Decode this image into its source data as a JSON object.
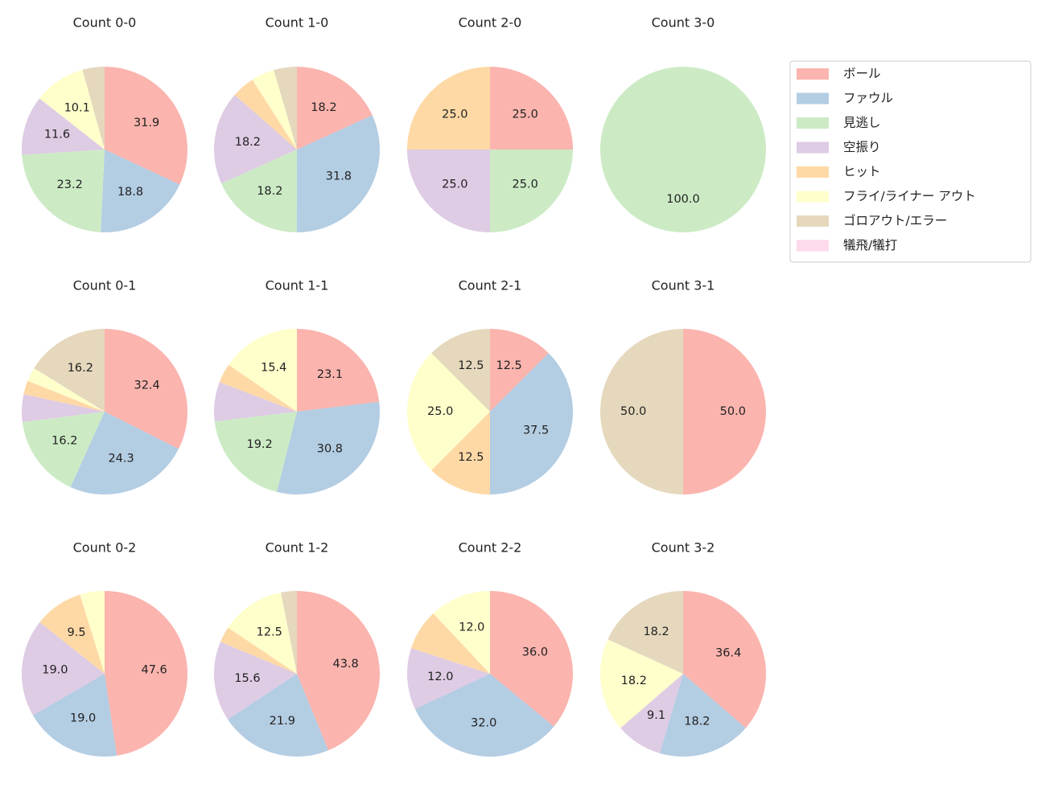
{
  "legend": {
    "categories": [
      "ボール",
      "ファウル",
      "見逃し",
      "空振り",
      "ヒット",
      "フライ/ライナー アウト",
      "ゴロアウト/エラー",
      "犠飛/犠打"
    ],
    "colors": [
      "#fbb4ae",
      "#b3cde3",
      "#ccebc5",
      "#decbe4",
      "#fed9a6",
      "#ffffcc",
      "#e5d8bd",
      "#fddaec"
    ]
  },
  "chart_data": [
    {
      "type": "pie",
      "title": "Count 0-0",
      "values": [
        31.9,
        18.8,
        23.2,
        11.6,
        0,
        10.1,
        4.3,
        0
      ],
      "value_labels": [
        "31.9",
        "18.8",
        "23.2",
        "11.6",
        null,
        "10.1",
        null,
        null
      ]
    },
    {
      "type": "pie",
      "title": "Count 1-0",
      "values": [
        18.2,
        31.8,
        18.2,
        18.2,
        4.5,
        4.5,
        4.5,
        0
      ],
      "value_labels": [
        "18.2",
        "31.8",
        "18.2",
        "18.2",
        null,
        null,
        null,
        null
      ]
    },
    {
      "type": "pie",
      "title": "Count 2-0",
      "values": [
        25,
        0,
        25,
        25,
        25,
        0,
        0,
        0
      ],
      "value_labels": [
        "25.0",
        null,
        "25.0",
        "25.0",
        "25.0",
        null,
        null,
        null
      ]
    },
    {
      "type": "pie",
      "title": "Count 3-0",
      "values": [
        0,
        0,
        100,
        0,
        0,
        0,
        0,
        0
      ],
      "value_labels": [
        null,
        null,
        "100.0",
        null,
        null,
        null,
        null,
        null
      ]
    },
    {
      "type": "pie",
      "title": "Count 0-1",
      "values": [
        32.4,
        24.3,
        16.2,
        5.4,
        2.7,
        2.7,
        16.2,
        0
      ],
      "value_labels": [
        "32.4",
        "24.3",
        "16.2",
        null,
        null,
        null,
        "16.2",
        null
      ]
    },
    {
      "type": "pie",
      "title": "Count 1-1",
      "values": [
        23.1,
        30.8,
        19.2,
        7.7,
        3.8,
        15.4,
        0,
        0
      ],
      "value_labels": [
        "23.1",
        "30.8",
        "19.2",
        null,
        null,
        "15.4",
        null,
        null
      ]
    },
    {
      "type": "pie",
      "title": "Count 2-1",
      "values": [
        12.5,
        37.5,
        0,
        0,
        12.5,
        25,
        12.5,
        0
      ],
      "value_labels": [
        "12.5",
        "37.5",
        null,
        null,
        "12.5",
        "25.0",
        "12.5",
        null
      ]
    },
    {
      "type": "pie",
      "title": "Count 3-1",
      "values": [
        50,
        0,
        0,
        0,
        0,
        0,
        50,
        0
      ],
      "value_labels": [
        "50.0",
        null,
        null,
        null,
        null,
        null,
        "50.0",
        null
      ]
    },
    {
      "type": "pie",
      "title": "Count 0-2",
      "values": [
        47.6,
        19.0,
        0,
        19.0,
        9.5,
        4.8,
        0,
        0
      ],
      "value_labels": [
        "47.6",
        "19.0",
        null,
        "19.0",
        "9.5",
        null,
        null,
        null
      ]
    },
    {
      "type": "pie",
      "title": "Count 1-2",
      "values": [
        43.8,
        21.9,
        0,
        15.6,
        3.1,
        12.5,
        3.1,
        0
      ],
      "value_labels": [
        "43.8",
        "21.9",
        null,
        "15.6",
        null,
        "12.5",
        null,
        null
      ]
    },
    {
      "type": "pie",
      "title": "Count 2-2",
      "values": [
        36.0,
        32.0,
        0,
        12.0,
        8.0,
        12.0,
        0,
        0
      ],
      "value_labels": [
        "36.0",
        "32.0",
        null,
        "12.0",
        null,
        "12.0",
        null,
        null
      ]
    },
    {
      "type": "pie",
      "title": "Count 3-2",
      "values": [
        36.4,
        18.2,
        0,
        9.1,
        0,
        18.2,
        18.2,
        0
      ],
      "value_labels": [
        "36.4",
        "18.2",
        null,
        "9.1",
        null,
        "18.2",
        "18.2",
        null
      ]
    }
  ]
}
